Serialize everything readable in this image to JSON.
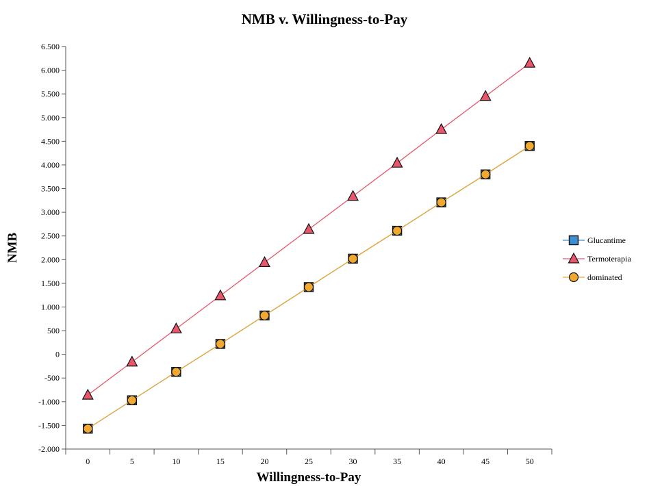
{
  "chart_data": {
    "type": "line",
    "title": "NMB v. Willingness-to-Pay",
    "xlabel": "Willingness-to-Pay",
    "ylabel": "NMB",
    "xlim": [
      -2.5,
      52.5
    ],
    "ylim": [
      -2000,
      6500
    ],
    "x_ticks": [
      0,
      5,
      10,
      15,
      20,
      25,
      30,
      35,
      40,
      45,
      50
    ],
    "y_ticks": [
      -2000,
      -1500,
      -1000,
      -500,
      0,
      500,
      1000,
      1500,
      2000,
      2500,
      3000,
      3500,
      4000,
      4500,
      5000,
      5500,
      6000,
      6500
    ],
    "y_tick_labels": [
      "-2.000",
      "-1.500",
      "-1.000",
      "-500",
      "0",
      "500",
      "1.000",
      "1.500",
      "2.000",
      "2.500",
      "3.000",
      "3.500",
      "4.000",
      "4.500",
      "5.000",
      "5.500",
      "6.000",
      "6.500"
    ],
    "grid": false,
    "legend_position": "right",
    "x": [
      0,
      5,
      10,
      15,
      20,
      25,
      30,
      35,
      40,
      45,
      50
    ],
    "series": [
      {
        "name": "Glucantime",
        "marker": "square",
        "color": "#3d8fd1",
        "values": [
          -1570,
          -970,
          -370,
          220,
          820,
          1420,
          2020,
          2610,
          3210,
          3800,
          4400
        ]
      },
      {
        "name": "Termoterapia",
        "marker": "triangle",
        "color": "#e8566c",
        "values": [
          -860,
          -160,
          540,
          1240,
          1940,
          2640,
          3340,
          4040,
          4750,
          5450,
          6150
        ]
      },
      {
        "name": "dominated",
        "marker": "circle",
        "color": "#f0a830",
        "values": [
          -1570,
          -970,
          -370,
          220,
          820,
          1420,
          2020,
          2610,
          3210,
          3800,
          4400
        ]
      }
    ]
  }
}
